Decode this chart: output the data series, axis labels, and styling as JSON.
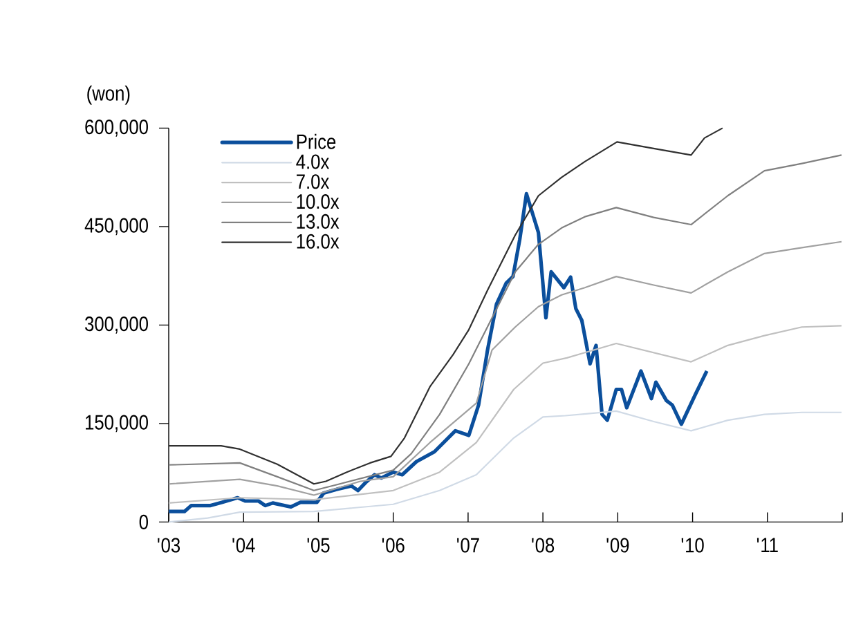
{
  "chart_data": {
    "type": "line",
    "ylabel": "(won)",
    "xlim": [
      2003,
      2012
    ],
    "xticks": [
      {
        "value": 2003,
        "label": "'03"
      },
      {
        "value": 2004,
        "label": "'04"
      },
      {
        "value": 2005,
        "label": "'05"
      },
      {
        "value": 2006,
        "label": "'06"
      },
      {
        "value": 2007,
        "label": "'07"
      },
      {
        "value": 2008,
        "label": "'08"
      },
      {
        "value": 2009,
        "label": "'09"
      },
      {
        "value": 2010,
        "label": "'10"
      },
      {
        "value": 2011,
        "label": "'11"
      },
      {
        "value": 2012,
        "label": null
      }
    ],
    "ylim": [
      0,
      600000
    ],
    "yticks": [
      {
        "value": 0,
        "label": "0"
      },
      {
        "value": 150000,
        "label": "150,000"
      },
      {
        "value": 300000,
        "label": "300,000"
      },
      {
        "value": 450000,
        "label": "450,000"
      },
      {
        "value": 600000,
        "label": "600,000"
      }
    ],
    "legend": "top left",
    "grid": false,
    "marker": "none",
    "line_style": "solid",
    "series": [
      {
        "name": "Price",
        "color": "#0b4f9c",
        "x": [
          2003.0,
          2003.21,
          2003.3,
          2003.55,
          2003.71,
          2003.92,
          2004.02,
          2004.2,
          2004.29,
          2004.39,
          2004.63,
          2004.76,
          2004.98,
          2005.07,
          2005.25,
          2005.44,
          2005.53,
          2005.63,
          2005.75,
          2005.84,
          2006.0,
          2006.12,
          2006.31,
          2006.55,
          2006.83,
          2007.01,
          2007.14,
          2007.26,
          2007.38,
          2007.51,
          2007.6,
          2007.69,
          2007.78,
          2007.94,
          2008.04,
          2008.11,
          2008.28,
          2008.37,
          2008.44,
          2008.52,
          2008.63,
          2008.71,
          2008.79,
          2008.86,
          2008.98,
          2009.05,
          2009.12,
          2009.31,
          2009.45,
          2009.51,
          2009.65,
          2009.73,
          2009.85,
          2010.04,
          2010.19
        ],
        "values": [
          16000,
          16000,
          25000,
          25000,
          30000,
          37000,
          32000,
          32000,
          25000,
          29000,
          23000,
          30000,
          30000,
          44000,
          50000,
          55000,
          48000,
          60000,
          72000,
          67000,
          76000,
          72000,
          92000,
          107000,
          139000,
          132000,
          178000,
          262000,
          332000,
          364000,
          374000,
          430000,
          500000,
          441000,
          311000,
          381000,
          357000,
          373000,
          325000,
          307000,
          241000,
          269000,
          164000,
          155000,
          202000,
          202000,
          174000,
          230000,
          188000,
          213000,
          185000,
          178000,
          149000,
          195000,
          230000
        ]
      },
      {
        "name": "4.0x",
        "color": "#d0dae6",
        "x": [
          2003.0,
          2003.52,
          2003.95,
          2004.94,
          2006.0,
          2006.62,
          2007.11,
          2007.61,
          2008.0,
          2008.3,
          2008.6,
          2008.98,
          2009.48,
          2009.98,
          2010.47,
          2010.96,
          2011.46,
          2011.99
        ],
        "values": [
          0,
          6000,
          15000,
          16000,
          27000,
          48000,
          72000,
          128000,
          160000,
          162000,
          165000,
          169000,
          153000,
          139000,
          155000,
          164000,
          167000,
          167000
        ]
      },
      {
        "name": "7.0x",
        "color": "#c0c0c0",
        "x": [
          2003.0,
          2003.95,
          2004.94,
          2006.0,
          2006.62,
          2007.11,
          2007.61,
          2008.0,
          2008.32,
          2008.56,
          2008.98,
          2009.48,
          2009.98,
          2010.47,
          2010.96,
          2011.46,
          2011.99
        ],
        "values": [
          29000,
          37000,
          34000,
          48000,
          76000,
          121000,
          202000,
          242000,
          250000,
          258000,
          272000,
          258000,
          244000,
          269000,
          284000,
          297000,
          299000
        ]
      },
      {
        "name": "10.0x",
        "color": "#a0a0a0",
        "x": [
          2003.0,
          2003.95,
          2004.45,
          2004.94,
          2005.56,
          2006.0,
          2006.49,
          2007.11,
          2007.32,
          2007.63,
          2007.94,
          2008.25,
          2008.56,
          2008.98,
          2009.48,
          2009.98,
          2010.47,
          2010.96,
          2011.46,
          2011.99
        ],
        "values": [
          58000,
          65000,
          55000,
          41000,
          62000,
          69000,
          121000,
          181000,
          262000,
          297000,
          328000,
          346000,
          357000,
          374000,
          361000,
          349000,
          381000,
          409000,
          418000,
          427000
        ]
      },
      {
        "name": "13.0x",
        "color": "#808080",
        "x": [
          2003.0,
          2003.95,
          2004.45,
          2004.94,
          2005.25,
          2006.0,
          2006.24,
          2006.62,
          2007.01,
          2007.32,
          2007.63,
          2007.94,
          2008.25,
          2008.56,
          2008.98,
          2009.48,
          2009.98,
          2010.47,
          2010.96,
          2011.46,
          2011.99
        ],
        "values": [
          87000,
          90000,
          69000,
          48000,
          57000,
          79000,
          104000,
          164000,
          241000,
          311000,
          381000,
          423000,
          448000,
          465000,
          479000,
          464000,
          453000,
          497000,
          535000,
          546000,
          559000
        ]
      },
      {
        "name": "16.0x",
        "color": "#303030",
        "x": [
          2003.0,
          2003.7,
          2003.95,
          2004.45,
          2004.94,
          2005.1,
          2005.38,
          2005.69,
          2005.97,
          2006.15,
          2006.49,
          2006.8,
          2007.01,
          2007.26,
          2007.63,
          2007.94,
          2008.25,
          2008.56,
          2008.99,
          2009.48,
          2009.98,
          2010.16,
          2010.4
        ],
        "values": [
          116000,
          116000,
          111000,
          88000,
          58000,
          62000,
          76000,
          90000,
          100000,
          128000,
          206000,
          255000,
          293000,
          353000,
          437000,
          497000,
          525000,
          549000,
          579000,
          569000,
          559000,
          585000,
          600000
        ]
      }
    ]
  }
}
